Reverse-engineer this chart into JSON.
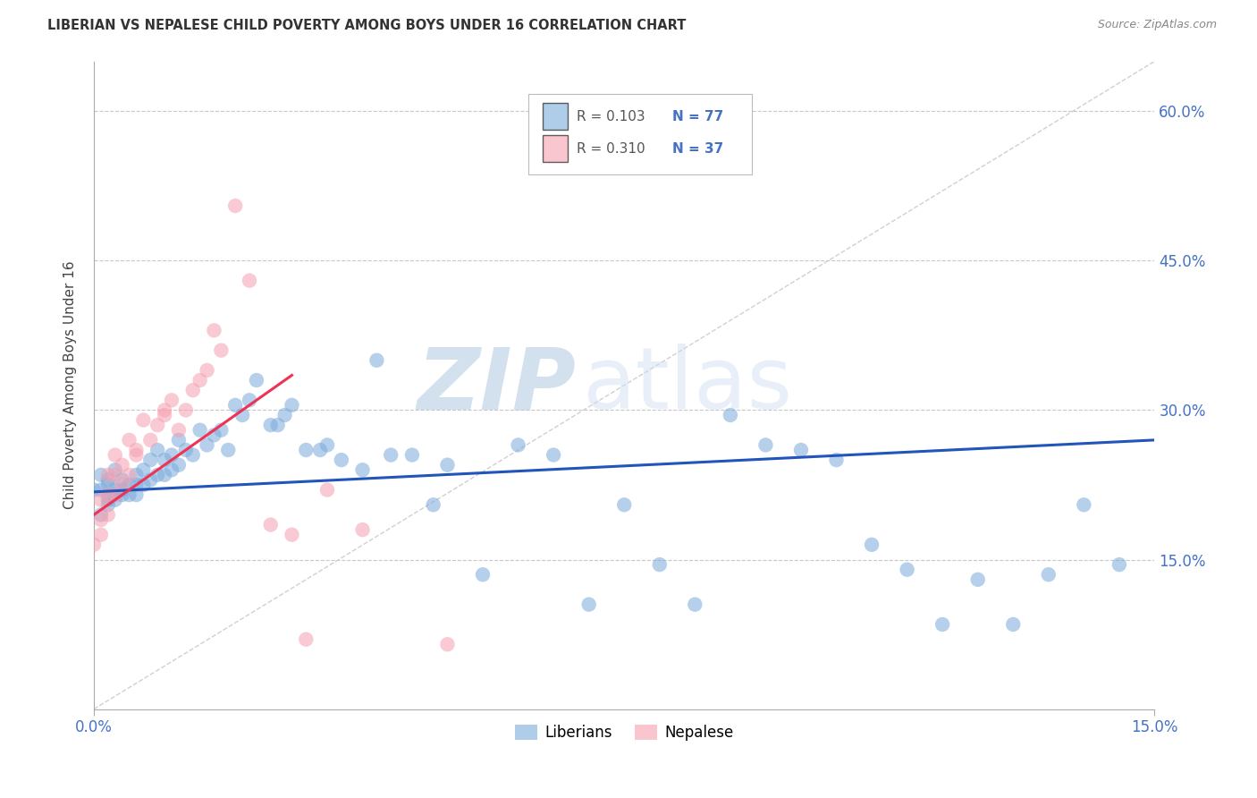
{
  "title": "LIBERIAN VS NEPALESE CHILD POVERTY AMONG BOYS UNDER 16 CORRELATION CHART",
  "source": "Source: ZipAtlas.com",
  "ylabel_left": "Child Poverty Among Boys Under 16",
  "xmin": 0.0,
  "xmax": 0.15,
  "ymin": 0.0,
  "ymax": 0.65,
  "axis_color": "#4472c4",
  "grid_color": "#c8c8c8",
  "watermark_zip_color": "#b8cfe8",
  "watermark_atlas_color": "#ccddf2",
  "legend_r1": "R = 0.103",
  "legend_n1": "N = 77",
  "legend_r2": "R = 0.310",
  "legend_n2": "N = 37",
  "blue_scatter_color": "#7aabdb",
  "pink_scatter_color": "#f5a0b0",
  "blue_line_color": "#2255bb",
  "pink_line_color": "#ee3355",
  "diag_line_color": "#d0d0d0",
  "lib_x": [
    0.0,
    0.001,
    0.001,
    0.001,
    0.002,
    0.002,
    0.002,
    0.002,
    0.002,
    0.003,
    0.003,
    0.003,
    0.003,
    0.004,
    0.004,
    0.004,
    0.005,
    0.005,
    0.006,
    0.006,
    0.006,
    0.007,
    0.007,
    0.008,
    0.008,
    0.009,
    0.009,
    0.01,
    0.01,
    0.011,
    0.011,
    0.012,
    0.012,
    0.013,
    0.014,
    0.015,
    0.016,
    0.017,
    0.018,
    0.019,
    0.02,
    0.021,
    0.022,
    0.023,
    0.025,
    0.026,
    0.027,
    0.028,
    0.03,
    0.032,
    0.033,
    0.035,
    0.038,
    0.04,
    0.042,
    0.045,
    0.048,
    0.05,
    0.055,
    0.06,
    0.065,
    0.07,
    0.075,
    0.08,
    0.085,
    0.09,
    0.095,
    0.1,
    0.105,
    0.11,
    0.115,
    0.12,
    0.125,
    0.13,
    0.135,
    0.14,
    0.145
  ],
  "lib_y": [
    0.22,
    0.235,
    0.22,
    0.195,
    0.225,
    0.215,
    0.205,
    0.23,
    0.21,
    0.24,
    0.215,
    0.21,
    0.22,
    0.23,
    0.22,
    0.215,
    0.215,
    0.225,
    0.225,
    0.235,
    0.215,
    0.24,
    0.225,
    0.25,
    0.23,
    0.26,
    0.235,
    0.25,
    0.235,
    0.255,
    0.24,
    0.27,
    0.245,
    0.26,
    0.255,
    0.28,
    0.265,
    0.275,
    0.28,
    0.26,
    0.305,
    0.295,
    0.31,
    0.33,
    0.285,
    0.285,
    0.295,
    0.305,
    0.26,
    0.26,
    0.265,
    0.25,
    0.24,
    0.35,
    0.255,
    0.255,
    0.205,
    0.245,
    0.135,
    0.265,
    0.255,
    0.105,
    0.205,
    0.145,
    0.105,
    0.295,
    0.265,
    0.26,
    0.25,
    0.165,
    0.14,
    0.085,
    0.13,
    0.085,
    0.135,
    0.205,
    0.145
  ],
  "nep_x": [
    0.0,
    0.001,
    0.001,
    0.001,
    0.002,
    0.002,
    0.002,
    0.003,
    0.003,
    0.003,
    0.004,
    0.004,
    0.005,
    0.005,
    0.006,
    0.006,
    0.007,
    0.008,
    0.009,
    0.01,
    0.01,
    0.011,
    0.012,
    0.013,
    0.014,
    0.015,
    0.016,
    0.017,
    0.018,
    0.02,
    0.022,
    0.025,
    0.028,
    0.03,
    0.033,
    0.038,
    0.05
  ],
  "nep_y": [
    0.165,
    0.175,
    0.19,
    0.21,
    0.195,
    0.215,
    0.235,
    0.215,
    0.235,
    0.255,
    0.225,
    0.245,
    0.235,
    0.27,
    0.255,
    0.26,
    0.29,
    0.27,
    0.285,
    0.295,
    0.3,
    0.31,
    0.28,
    0.3,
    0.32,
    0.33,
    0.34,
    0.38,
    0.36,
    0.505,
    0.43,
    0.185,
    0.175,
    0.07,
    0.22,
    0.18,
    0.065
  ],
  "blue_line_x0": 0.0,
  "blue_line_y0": 0.218,
  "blue_line_x1": 0.15,
  "blue_line_y1": 0.27,
  "pink_line_x0": 0.0,
  "pink_line_y0": 0.195,
  "pink_line_x1": 0.028,
  "pink_line_y1": 0.335
}
